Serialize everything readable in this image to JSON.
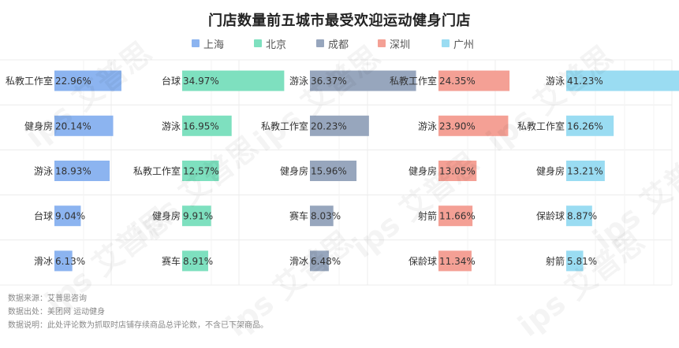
{
  "chart_data": {
    "type": "bar",
    "title": "门店数量前五城市最受欢迎运动健身门店",
    "legend_position": "top",
    "xlim": [
      0,
      50
    ],
    "series": [
      {
        "name": "上海",
        "color": "#8cb4f0",
        "categories": [
          "私教工作室",
          "健身房",
          "游泳",
          "台球",
          "滑冰"
        ],
        "values": [
          22.96,
          20.14,
          18.93,
          9.04,
          6.13
        ],
        "labels": [
          "22.96%",
          "20.14%",
          "18.93%",
          "9.04%",
          "6.13%"
        ]
      },
      {
        "name": "北京",
        "color": "#7ee0bf",
        "categories": [
          "台球",
          "游泳",
          "私教工作室",
          "健身房",
          "赛车"
        ],
        "values": [
          34.97,
          16.95,
          12.57,
          9.91,
          8.91
        ],
        "labels": [
          "34.97%",
          "16.95%",
          "12.57%",
          "9.91%",
          "8.91%"
        ]
      },
      {
        "name": "成都",
        "color": "#97a6bd",
        "categories": [
          "游泳",
          "私教工作室",
          "健身房",
          "赛车",
          "滑冰"
        ],
        "values": [
          36.37,
          20.23,
          15.96,
          8.03,
          6.48
        ],
        "labels": [
          "36.37%",
          "20.23%",
          "15.96%",
          "8.03%",
          "6.48%"
        ]
      },
      {
        "name": "深圳",
        "color": "#f4a095",
        "categories": [
          "私教工作室",
          "游泳",
          "健身房",
          "射箭",
          "保龄球"
        ],
        "values": [
          24.35,
          23.9,
          13.05,
          11.66,
          11.34
        ],
        "labels": [
          "24.35%",
          "23.90%",
          "13.05%",
          "11.66%",
          "11.34%"
        ]
      },
      {
        "name": "广州",
        "color": "#9adcf2",
        "categories": [
          "游泳",
          "私教工作室",
          "健身房",
          "保龄球",
          "射箭"
        ],
        "values": [
          41.23,
          16.26,
          13.21,
          8.87,
          5.81
        ],
        "labels": [
          "41.23%",
          "16.26%",
          "13.21%",
          "8.87%",
          "5.81%"
        ]
      }
    ]
  },
  "footnotes": [
    "数据来源：艾普思咨询",
    "数据出处：美团网 运动健身",
    "数据说明：此处评论数为抓取时店铺存续商品总评论数，不含已下架商品。"
  ],
  "watermark_text": "ips 艾普思"
}
